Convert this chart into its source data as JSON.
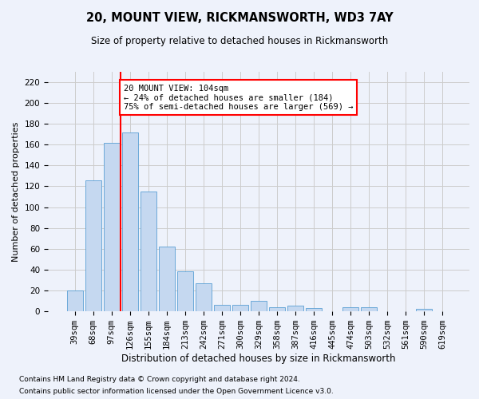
{
  "title": "20, MOUNT VIEW, RICKMANSWORTH, WD3 7AY",
  "subtitle": "Size of property relative to detached houses in Rickmansworth",
  "xlabel": "Distribution of detached houses by size in Rickmansworth",
  "ylabel": "Number of detached properties",
  "footnote1": "Contains HM Land Registry data © Crown copyright and database right 2024.",
  "footnote2": "Contains public sector information licensed under the Open Government Licence v3.0.",
  "categories": [
    "39sqm",
    "68sqm",
    "97sqm",
    "126sqm",
    "155sqm",
    "184sqm",
    "213sqm",
    "242sqm",
    "271sqm",
    "300sqm",
    "329sqm",
    "358sqm",
    "387sqm",
    "416sqm",
    "445sqm",
    "474sqm",
    "503sqm",
    "532sqm",
    "561sqm",
    "590sqm",
    "619sqm"
  ],
  "values": [
    20,
    126,
    162,
    172,
    115,
    62,
    38,
    27,
    6,
    6,
    10,
    4,
    5,
    3,
    0,
    4,
    4,
    0,
    0,
    2,
    0
  ],
  "bar_color": "#c5d8f0",
  "bar_edge_color": "#5a9fd4",
  "red_line_x": 2.5,
  "annotation_text": "20 MOUNT VIEW: 104sqm\n← 24% of detached houses are smaller (184)\n75% of semi-detached houses are larger (569) →",
  "annotation_box_color": "white",
  "annotation_box_edge": "red",
  "ylim": [
    0,
    230
  ],
  "yticks": [
    0,
    20,
    40,
    60,
    80,
    100,
    120,
    140,
    160,
    180,
    200,
    220
  ],
  "grid_color": "#cccccc",
  "background_color": "#eef2fb",
  "title_fontsize": 10.5,
  "subtitle_fontsize": 8.5,
  "ylabel_fontsize": 8,
  "xlabel_fontsize": 8.5,
  "tick_fontsize": 7.5,
  "annotation_fontsize": 7.5,
  "footnote_fontsize": 6.5
}
